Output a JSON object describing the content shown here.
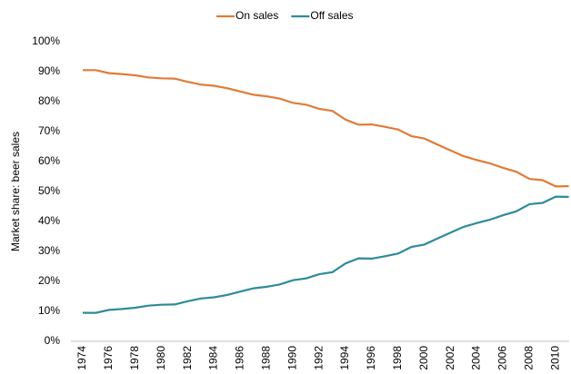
{
  "chart_data": {
    "type": "line",
    "y_label": "Market share: beer sales",
    "categories": [
      "1974",
      null,
      "1976",
      null,
      "1978",
      null,
      "1980",
      null,
      "1982",
      null,
      "1984",
      null,
      "1986",
      null,
      "1988",
      null,
      "1990",
      null,
      "1992",
      null,
      "1994",
      null,
      "1996",
      null,
      "1998",
      null,
      "2000",
      null,
      "2002",
      null,
      "2004",
      null,
      "2006",
      null,
      "2008",
      null,
      "2010",
      null
    ],
    "series": [
      {
        "name": "On sales",
        "color": "#e07b39",
        "values": [
          90.5,
          90.5,
          89.5,
          89.2,
          88.8,
          88.1,
          87.8,
          87.7,
          86.6,
          85.7,
          85.3,
          84.5,
          83.4,
          82.3,
          81.8,
          81.0,
          79.6,
          79.0,
          77.6,
          76.9,
          74.0,
          72.3,
          72.4,
          71.6,
          70.7,
          68.5,
          67.7,
          65.7,
          63.7,
          61.8,
          60.5,
          59.4,
          57.9,
          56.6,
          54.2,
          53.8,
          51.7,
          51.8
        ]
      },
      {
        "name": "Off sales",
        "color": "#2e8b9a",
        "values": [
          9.5,
          9.5,
          10.5,
          10.8,
          11.2,
          11.9,
          12.2,
          12.3,
          13.4,
          14.3,
          14.7,
          15.5,
          16.6,
          17.7,
          18.2,
          19.0,
          20.4,
          21.0,
          22.4,
          23.1,
          26.0,
          27.7,
          27.6,
          28.4,
          29.3,
          31.5,
          32.3,
          34.3,
          36.3,
          38.2,
          39.5,
          40.6,
          42.1,
          43.4,
          45.8,
          46.2,
          48.3,
          48.2
        ]
      }
    ],
    "ylim": [
      0,
      100
    ],
    "yticks": [
      {
        "value": 0,
        "label": "0%"
      },
      {
        "value": 10,
        "label": "10%"
      },
      {
        "value": 20,
        "label": "20%"
      },
      {
        "value": 30,
        "label": "30%"
      },
      {
        "value": 40,
        "label": "40%"
      },
      {
        "value": 50,
        "label": "50%"
      },
      {
        "value": 60,
        "label": "60%"
      },
      {
        "value": 70,
        "label": "70%"
      },
      {
        "value": 80,
        "label": "80%"
      },
      {
        "value": 90,
        "label": "90%"
      },
      {
        "value": 100,
        "label": "100%"
      }
    ],
    "legend": "top"
  }
}
